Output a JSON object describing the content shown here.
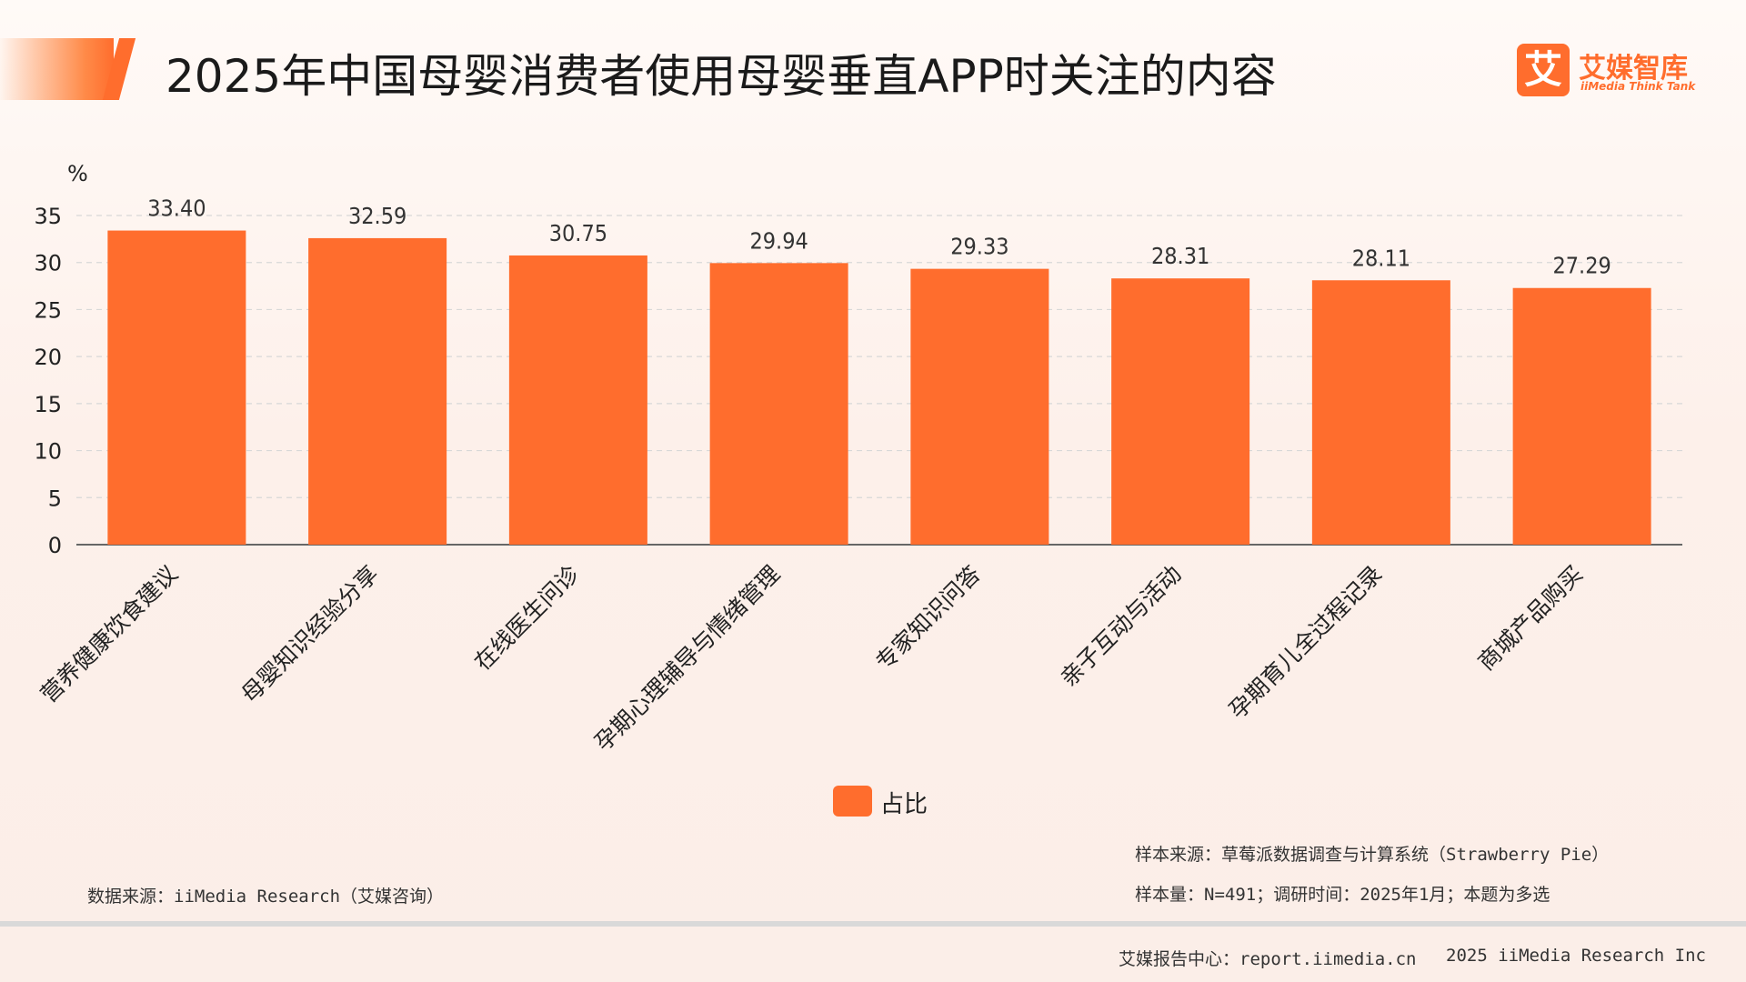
{
  "title": "2025年中国母婴消费者使用母婴垂直APP时关注的内容",
  "logo": {
    "mark": "艾",
    "name_cn": "艾媒智库",
    "name_en": "iiMedia Think Tank",
    "icon": "iimedia-logo-icon"
  },
  "colors": {
    "accent": "#ff6d2d",
    "bar": "#ff6d2d",
    "grid": "#d8d8d8",
    "axis": "#666666"
  },
  "chart_data": {
    "type": "bar",
    "unit_label": "%",
    "categories": [
      "营养健康饮食建议",
      "母婴知识经验分享",
      "在线医生问诊",
      "孕期心理辅导与情绪管理",
      "专家知识问答",
      "亲子互动与活动",
      "孕期育儿全过程记录",
      "商城产品购买"
    ],
    "series": [
      {
        "name": "占比",
        "values": [
          33.4,
          32.59,
          30.75,
          29.94,
          29.33,
          28.31,
          28.11,
          27.29
        ]
      }
    ],
    "data_labels": [
      "33.40",
      "32.59",
      "30.75",
      "29.94",
      "29.33",
      "28.31",
      "28.11",
      "27.29"
    ],
    "yticks": [
      "0",
      "5",
      "10",
      "15",
      "20",
      "25",
      "30",
      "35"
    ],
    "ylim": [
      0,
      35
    ],
    "grid": true,
    "legend_position": "bottom"
  },
  "notes": {
    "data_source": "数据来源：iiMedia Research（艾媒咨询）",
    "sample_source": "样本来源：草莓派数据调查与计算系统（Strawberry Pie）",
    "sample_size": "样本量：N=491；调研时间：2025年1月；本题为多选"
  },
  "footer": {
    "report_center": "艾媒报告中心：report.iimedia.cn",
    "copyright": "2025 iiMedia Research Inc"
  }
}
